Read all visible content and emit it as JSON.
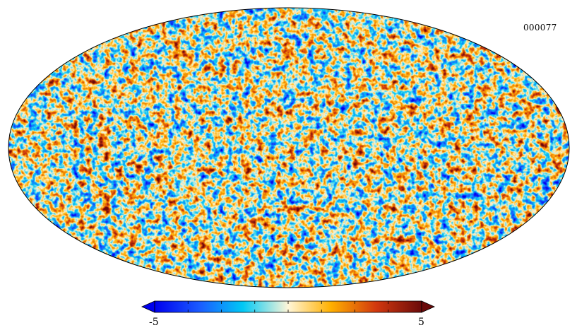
{
  "map": {
    "projection": "mollweide",
    "identifier": "000077",
    "seed": 77
  },
  "colorbar": {
    "min_label": "-5",
    "max_label": "5",
    "min": -5,
    "max": 5,
    "ticks": [
      -5,
      -3.75,
      -2.5,
      -1.25,
      0,
      1.25,
      2.5,
      3.75,
      5
    ],
    "colors": {
      "stops": [
        {
          "pos": 0.0,
          "color": "#0000ee"
        },
        {
          "pos": 0.17,
          "color": "#1a5cff"
        },
        {
          "pos": 0.33,
          "color": "#00c8f5"
        },
        {
          "pos": 0.5,
          "color": "#fff6d8"
        },
        {
          "pos": 0.66,
          "color": "#ffb000"
        },
        {
          "pos": 0.83,
          "color": "#d2380e"
        },
        {
          "pos": 1.0,
          "color": "#6a0a0a"
        }
      ]
    }
  }
}
